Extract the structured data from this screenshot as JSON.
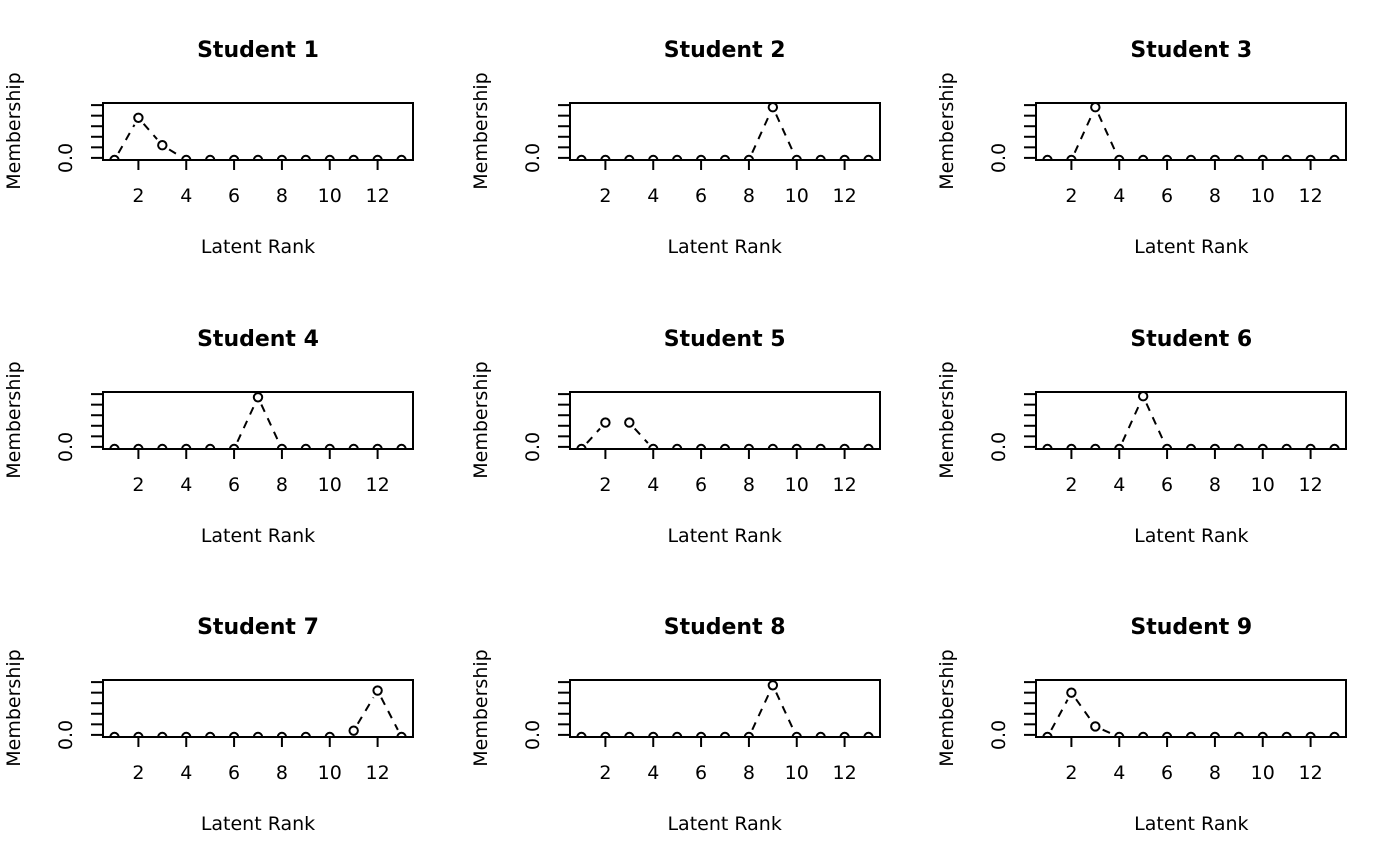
{
  "figure": {
    "background": "#ffffff",
    "foreground": "#000000"
  },
  "chart_data": {
    "type": "line",
    "layout": "3x3-grid",
    "x": [
      1,
      2,
      3,
      4,
      5,
      6,
      7,
      8,
      9,
      10,
      11,
      12,
      13
    ],
    "xlabel": "Latent Rank",
    "ylabel": "Membership",
    "xticks": [
      2,
      4,
      6,
      8,
      10,
      12
    ],
    "yticks": [
      0.0,
      0.1,
      0.2,
      0.3,
      0.4,
      0.5
    ],
    "ytick_label_shown": "0.0",
    "ylim": [
      0,
      0.52
    ],
    "marker": "open-circle",
    "line_style": "dashed",
    "grid": false,
    "legend": "none",
    "panels": [
      {
        "title": "Student 1",
        "values": [
          0,
          0.38,
          0.12,
          0,
          0,
          0,
          0,
          0,
          0,
          0,
          0,
          0,
          0
        ]
      },
      {
        "title": "Student 2",
        "values": [
          0,
          0,
          0,
          0,
          0,
          0,
          0,
          0,
          0.48,
          0,
          0,
          0,
          0
        ]
      },
      {
        "title": "Student 3",
        "values": [
          0,
          0,
          0.48,
          0,
          0,
          0,
          0,
          0,
          0,
          0,
          0,
          0,
          0
        ]
      },
      {
        "title": "Student 4",
        "values": [
          0,
          0,
          0,
          0,
          0,
          0,
          0.47,
          0,
          0,
          0,
          0,
          0,
          0
        ]
      },
      {
        "title": "Student 5",
        "values": [
          0,
          0.23,
          0.23,
          0,
          0,
          0,
          0,
          0,
          0,
          0,
          0,
          0,
          0
        ]
      },
      {
        "title": "Student 6",
        "values": [
          0,
          0,
          0,
          0,
          0.48,
          0,
          0,
          0,
          0,
          0,
          0,
          0,
          0
        ]
      },
      {
        "title": "Student 7",
        "values": [
          0,
          0,
          0,
          0,
          0,
          0,
          0,
          0,
          0,
          0,
          0.04,
          0.42,
          0
        ]
      },
      {
        "title": "Student 8",
        "values": [
          0,
          0,
          0,
          0,
          0,
          0,
          0,
          0,
          0.47,
          0,
          0,
          0,
          0
        ]
      },
      {
        "title": "Student 9",
        "values": [
          0,
          0.4,
          0.08,
          0,
          0,
          0,
          0,
          0,
          0,
          0,
          0,
          0,
          0
        ]
      }
    ]
  }
}
